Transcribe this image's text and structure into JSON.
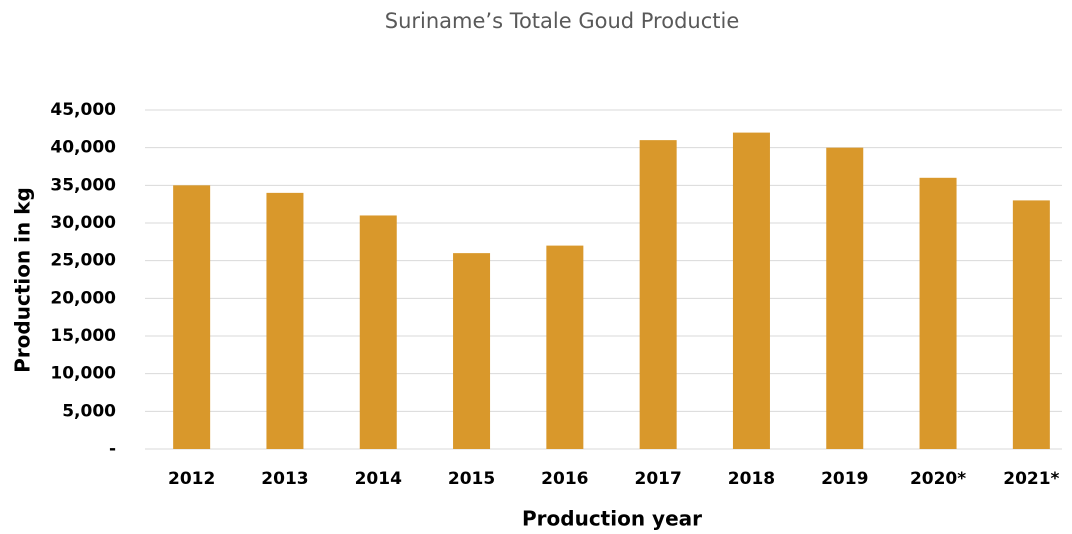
{
  "chart_data": {
    "type": "bar",
    "title": "Suriname’s Totale Goud Productie",
    "x_label": "Production year",
    "y_label": "Production in kg",
    "categories": [
      "2012",
      "2013",
      "2014",
      "2015",
      "2016",
      "2017",
      "2018",
      "2019",
      "2020*",
      "2021*"
    ],
    "values": [
      35000,
      34000,
      31000,
      26000,
      27000,
      41000,
      42000,
      40000,
      36000,
      33000
    ],
    "color": "#d9982b",
    "ylim": [
      0,
      45000
    ],
    "yticks": [
      {
        "value": 0,
        "label": "-"
      },
      {
        "value": 5000,
        "label": "5,000"
      },
      {
        "value": 10000,
        "label": "10,000"
      },
      {
        "value": 15000,
        "label": "15,000"
      },
      {
        "value": 20000,
        "label": "20,000"
      },
      {
        "value": 25000,
        "label": "25,000"
      },
      {
        "value": 30000,
        "label": "30,000"
      },
      {
        "value": 35000,
        "label": "35,000"
      },
      {
        "value": 40000,
        "label": "40,000"
      },
      {
        "value": 45000,
        "label": "45,000"
      }
    ],
    "grid": true
  }
}
